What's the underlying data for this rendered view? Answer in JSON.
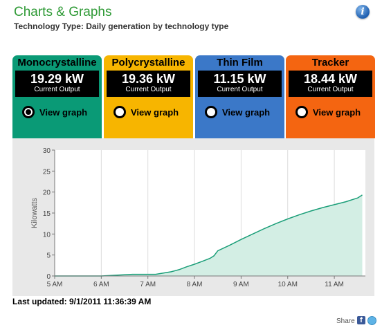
{
  "header": {
    "title": "Charts & Graphs",
    "subtitle": "Technology Type: Daily generation by technology type",
    "info_icon": "info-icon"
  },
  "cards": [
    {
      "name": "Monocrystalline",
      "value": "19.29 kW",
      "caption": "Current Output",
      "action": "View graph",
      "color": "#0a9a76",
      "selected": true
    },
    {
      "name": "Polycrystalline",
      "value": "19.36 kW",
      "caption": "Current Output",
      "action": "View graph",
      "color": "#f7b500",
      "selected": false
    },
    {
      "name": "Thin Film",
      "value": "11.15 kW",
      "caption": "Current Output",
      "action": "View graph",
      "color": "#3b78c8",
      "selected": false
    },
    {
      "name": "Tracker",
      "value": "18.44 kW",
      "caption": "Current Output",
      "action": "View graph",
      "color": "#f46511",
      "selected": false
    }
  ],
  "chart_data": {
    "type": "area",
    "title": "",
    "xlabel": "",
    "ylabel": "Kilowatts",
    "x_ticks": [
      "5 AM",
      "6 AM",
      "7 AM",
      "8 AM",
      "9 AM",
      "10 AM",
      "11 AM"
    ],
    "y_ticks": [
      0,
      5,
      10,
      15,
      20,
      25,
      30
    ],
    "ylim": [
      0,
      30
    ],
    "grid": true,
    "series": [
      {
        "color": "#1a9e78",
        "fill": "#d3eee4",
        "x": [
          "5:00 AM",
          "6:00 AM",
          "6:40 AM",
          "7:00 AM",
          "7:10 AM",
          "7:30 AM",
          "7:40 AM",
          "7:50 AM",
          "8:00 AM",
          "8:10 AM",
          "8:20 AM",
          "8:25 AM",
          "8:30 AM",
          "8:45 AM",
          "9:00 AM",
          "9:15 AM",
          "9:30 AM",
          "9:45 AM",
          "10:00 AM",
          "10:15 AM",
          "10:30 AM",
          "10:45 AM",
          "11:00 AM",
          "11:15 AM",
          "11:30 AM",
          "11:36 AM"
        ],
        "values": [
          0.0,
          0.0,
          0.4,
          0.4,
          0.4,
          1.0,
          1.5,
          2.2,
          2.8,
          3.5,
          4.2,
          4.8,
          6.0,
          7.3,
          8.7,
          10.0,
          11.3,
          12.5,
          13.6,
          14.6,
          15.5,
          16.3,
          17.0,
          17.7,
          18.6,
          19.3
        ]
      }
    ]
  },
  "footer": {
    "last_updated": "Last updated: 9/1/2011 11:36:39 AM",
    "share_label": "Share",
    "facebook_icon": "facebook-icon",
    "twitter_icon": "twitter-icon"
  }
}
